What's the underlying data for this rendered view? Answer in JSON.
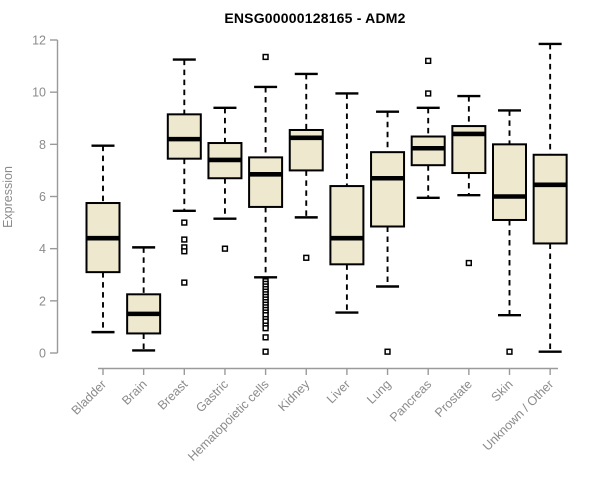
{
  "chart_data": {
    "type": "boxplot",
    "title": "ENSG00000128165 - ADM2",
    "ylabel": "Expression",
    "xlabel": "",
    "ylim": [
      0,
      12
    ],
    "yticks": [
      "0",
      "2",
      "4",
      "6",
      "8",
      "10",
      "12"
    ],
    "grid": false,
    "legend": "none",
    "categories": [
      "Bladder",
      "Brain",
      "Breast",
      "Gastric",
      "Hematopoietic cells",
      "Kidney",
      "Liver",
      "Lung",
      "Pancreas",
      "Prostate",
      "Skin",
      "Unknown / Other"
    ],
    "boxes": [
      {
        "category": "Bladder",
        "whisker_low": 0.8,
        "q1": 3.1,
        "median": 4.4,
        "q3": 5.75,
        "whisker_high": 7.95,
        "outliers": []
      },
      {
        "category": "Brain",
        "whisker_low": 0.1,
        "q1": 0.75,
        "median": 1.5,
        "q3": 2.25,
        "whisker_high": 4.05,
        "outliers": []
      },
      {
        "category": "Breast",
        "whisker_low": 5.45,
        "q1": 7.45,
        "median": 8.2,
        "q3": 9.15,
        "whisker_high": 11.25,
        "outliers": [
          5.0,
          4.35,
          4.05,
          3.9,
          2.7
        ]
      },
      {
        "category": "Gastric",
        "whisker_low": 5.15,
        "q1": 6.7,
        "median": 7.4,
        "q3": 8.05,
        "whisker_high": 9.4,
        "outliers": [
          4.0
        ]
      },
      {
        "category": "Hematopoietic cells",
        "whisker_low": 2.9,
        "q1": 5.6,
        "median": 6.85,
        "q3": 7.5,
        "whisker_high": 10.2,
        "outliers": [
          11.35,
          2.75,
          2.65,
          2.55,
          2.45,
          2.35,
          2.25,
          2.15,
          2.05,
          1.95,
          1.85,
          1.75,
          1.65,
          1.55,
          1.45,
          1.3,
          1.2,
          1.05,
          0.95,
          0.6,
          0.05
        ]
      },
      {
        "category": "Kidney",
        "whisker_low": 5.2,
        "q1": 7.0,
        "median": 8.25,
        "q3": 8.55,
        "whisker_high": 10.7,
        "outliers": [
          3.65
        ]
      },
      {
        "category": "Liver",
        "whisker_low": 1.55,
        "q1": 3.4,
        "median": 4.4,
        "q3": 6.4,
        "whisker_high": 9.95,
        "outliers": []
      },
      {
        "category": "Lung",
        "whisker_low": 2.55,
        "q1": 4.85,
        "median": 6.7,
        "q3": 7.7,
        "whisker_high": 9.25,
        "outliers": [
          0.05
        ]
      },
      {
        "category": "Pancreas",
        "whisker_low": 5.95,
        "q1": 7.2,
        "median": 7.85,
        "q3": 8.3,
        "whisker_high": 9.4,
        "outliers": [
          11.2,
          9.95
        ]
      },
      {
        "category": "Prostate",
        "whisker_low": 6.05,
        "q1": 6.9,
        "median": 8.4,
        "q3": 8.7,
        "whisker_high": 9.85,
        "outliers": [
          3.45
        ]
      },
      {
        "category": "Skin",
        "whisker_low": 1.45,
        "q1": 5.1,
        "median": 6.0,
        "q3": 8.0,
        "whisker_high": 9.3,
        "outliers": [
          0.05
        ]
      },
      {
        "category": "Unknown / Other",
        "whisker_low": 0.05,
        "q1": 4.2,
        "median": 6.45,
        "q3": 7.6,
        "whisker_high": 11.85,
        "outliers": []
      }
    ],
    "colors": {
      "box_fill": "#EDE8CE",
      "box_border": "#000000",
      "median": "#000000",
      "whisker": "#000000",
      "outlier": "#000000",
      "axis_line": "#9a9a9a",
      "tick_text": "#8b8b8b",
      "title_text": "#000000"
    }
  }
}
